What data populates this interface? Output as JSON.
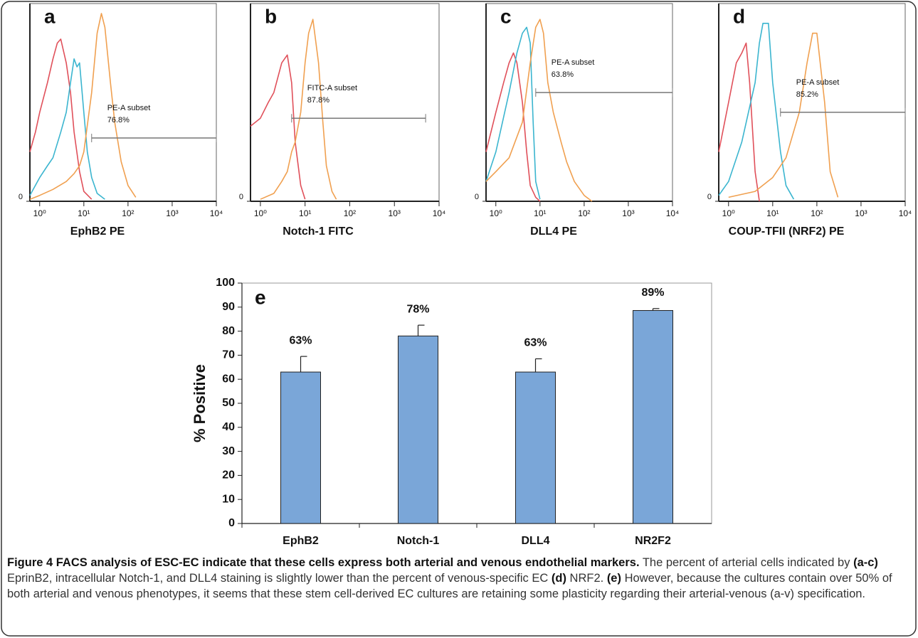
{
  "chart_data": [
    {
      "type": "line",
      "panel_label": "a",
      "x_label": "EphB2 PE",
      "xscale": "log",
      "xlim": [
        0.6,
        10000
      ],
      "xticks": [
        {
          "value": 1,
          "label": "10⁰"
        },
        {
          "value": 10,
          "label": "10¹"
        },
        {
          "value": 100,
          "label": "10²"
        },
        {
          "value": 1000,
          "label": "10³"
        },
        {
          "value": 10000,
          "label": "10⁴"
        }
      ],
      "ylim": [
        0,
        100
      ],
      "yticks": [
        0
      ],
      "series": [
        {
          "color": "#e0505a",
          "x": [
            0.6,
            0.8,
            1,
            1.5,
            2,
            2.5,
            3,
            4,
            5,
            6,
            8,
            10,
            15
          ],
          "values": [
            25,
            35,
            45,
            60,
            72,
            80,
            82,
            70,
            55,
            35,
            15,
            5,
            1
          ]
        },
        {
          "color": "#3bb5cf",
          "x": [
            0.6,
            1,
            1.5,
            2,
            3,
            4,
            5,
            6,
            7,
            8,
            10,
            12,
            15,
            20,
            30
          ],
          "values": [
            3,
            12,
            18,
            22,
            35,
            45,
            60,
            72,
            68,
            70,
            45,
            25,
            12,
            4,
            1
          ]
        },
        {
          "color": "#f0a050",
          "x": [
            0.6,
            1,
            2,
            4,
            6,
            8,
            10,
            15,
            20,
            25,
            30,
            40,
            50,
            70,
            100,
            150
          ],
          "values": [
            1,
            3,
            6,
            10,
            14,
            18,
            25,
            55,
            85,
            95,
            88,
            60,
            40,
            20,
            8,
            2
          ]
        }
      ],
      "gate": {
        "name": "PE-A subset",
        "percent": "76.8%",
        "range": [
          15,
          10000
        ]
      }
    },
    {
      "type": "line",
      "panel_label": "b",
      "x_label": "Notch-1 FITC",
      "xscale": "log",
      "xlim": [
        0.6,
        10000
      ],
      "xticks": [
        {
          "value": 1,
          "label": "10⁰"
        },
        {
          "value": 10,
          "label": "10¹"
        },
        {
          "value": 100,
          "label": "10²"
        },
        {
          "value": 1000,
          "label": "10³"
        },
        {
          "value": 10000,
          "label": "10⁴"
        }
      ],
      "ylim": [
        0,
        100
      ],
      "yticks": [
        0
      ],
      "series": [
        {
          "color": "#e0505a",
          "x": [
            0.6,
            1,
            1.5,
            2,
            3,
            4,
            5,
            6,
            8,
            10
          ],
          "values": [
            38,
            42,
            50,
            55,
            70,
            74,
            60,
            30,
            8,
            1
          ]
        },
        {
          "color": "#f0a050",
          "x": [
            1,
            2,
            3,
            4,
            5,
            6,
            8,
            10,
            12,
            15,
            20,
            25,
            30,
            40,
            50
          ],
          "values": [
            1,
            4,
            10,
            15,
            25,
            30,
            45,
            70,
            85,
            92,
            70,
            40,
            18,
            5,
            1
          ]
        }
      ],
      "gate": {
        "name": "FITC-A subset",
        "percent": "87.8%",
        "range": [
          5,
          5000
        ]
      }
    },
    {
      "type": "line",
      "panel_label": "c",
      "x_label": "DLL4 PE",
      "xscale": "log",
      "xlim": [
        0.6,
        10000
      ],
      "xticks": [
        {
          "value": 1,
          "label": "10⁰"
        },
        {
          "value": 10,
          "label": "10¹"
        },
        {
          "value": 100,
          "label": "10²"
        },
        {
          "value": 1000,
          "label": "10³"
        },
        {
          "value": 10000,
          "label": "10⁴"
        }
      ],
      "ylim": [
        0,
        100
      ],
      "yticks": [
        0
      ],
      "series": [
        {
          "color": "#e0505a",
          "x": [
            0.6,
            1,
            1.5,
            2,
            2.5,
            3,
            4,
            5,
            6,
            8,
            10
          ],
          "values": [
            25,
            45,
            60,
            70,
            75,
            70,
            50,
            25,
            8,
            2,
            0
          ]
        },
        {
          "color": "#3bb5cf",
          "x": [
            0.6,
            1,
            2,
            3,
            4,
            5,
            6,
            7,
            8,
            10
          ],
          "values": [
            10,
            25,
            55,
            75,
            85,
            88,
            80,
            40,
            10,
            1
          ]
        },
        {
          "color": "#f0a050",
          "x": [
            0.6,
            1,
            2,
            4,
            6,
            8,
            10,
            12,
            15,
            20,
            30,
            40,
            60,
            100,
            150
          ],
          "values": [
            10,
            15,
            22,
            40,
            70,
            88,
            92,
            85,
            60,
            45,
            30,
            20,
            10,
            3,
            0
          ]
        }
      ],
      "gate": {
        "name": "PE-A subset",
        "percent": "63.8%",
        "range": [
          8,
          10000
        ]
      }
    },
    {
      "type": "line",
      "panel_label": "d",
      "x_label": "COUP-TFII (NRF2) PE",
      "xscale": "log",
      "xlim": [
        0.6,
        10000
      ],
      "xticks": [
        {
          "value": 1,
          "label": "10⁰"
        },
        {
          "value": 10,
          "label": "10¹"
        },
        {
          "value": 100,
          "label": "10²"
        },
        {
          "value": 1000,
          "label": "10³"
        },
        {
          "value": 10000,
          "label": "10⁴"
        }
      ],
      "ylim": [
        0,
        100
      ],
      "yticks": [
        0
      ],
      "series": [
        {
          "color": "#e0505a",
          "x": [
            0.6,
            1,
            1.5,
            2,
            2.5,
            3,
            4,
            5
          ],
          "values": [
            25,
            50,
            70,
            75,
            80,
            60,
            15,
            0
          ]
        },
        {
          "color": "#3bb5cf",
          "x": [
            0.6,
            1,
            2,
            4,
            5,
            6,
            8,
            10,
            15,
            20,
            30
          ],
          "values": [
            3,
            10,
            30,
            60,
            80,
            90,
            90,
            60,
            25,
            8,
            1
          ]
        },
        {
          "color": "#f0a050",
          "x": [
            1,
            4,
            10,
            20,
            40,
            60,
            80,
            100,
            150,
            200,
            300
          ],
          "values": [
            2,
            5,
            12,
            22,
            45,
            70,
            85,
            85,
            50,
            15,
            2
          ]
        }
      ],
      "gate": {
        "name": "PE-A subset",
        "percent": "85.2%",
        "range": [
          15,
          10000
        ]
      }
    },
    {
      "type": "bar",
      "panel_label": "e",
      "y_label": "% Positive",
      "categories": [
        "EphB2",
        "Notch-1",
        "DLL4",
        "NR2F2"
      ],
      "values": [
        63,
        78,
        63,
        88.6
      ],
      "errors": [
        6.5,
        4.5,
        5.5,
        0.8
      ],
      "value_labels": [
        "63%",
        "78%",
        "63%",
        "89%"
      ],
      "color": "#7aa6d8",
      "ylim": [
        0,
        100
      ],
      "yticks": [
        0,
        10,
        20,
        30,
        40,
        50,
        60,
        70,
        80,
        90,
        100
      ]
    }
  ],
  "caption": {
    "runs": [
      {
        "text": "Figure 4 FACS analysis of ESC-EC indicate that these cells express both arterial and venous endothelial markers.",
        "bold": true
      },
      {
        "text": " The percent of arterial cells indicated by ",
        "bold": false
      },
      {
        "text": "(a-c)",
        "bold": true
      },
      {
        "text": " EprinB2, intracellular Notch-1, and DLL4 staining is slightly lower than the percent of venous-specific EC ",
        "bold": false
      },
      {
        "text": "(d)",
        "bold": true
      },
      {
        "text": " NRF2. ",
        "bold": false
      },
      {
        "text": "(e)",
        "bold": true
      },
      {
        "text": " However, because the cultures contain over 50% of both arterial and venous phenotypes, it seems that these stem cell-derived EC cultures are retaining some plasticity regarding their arterial-venous (a-v) specification.",
        "bold": false
      }
    ]
  }
}
